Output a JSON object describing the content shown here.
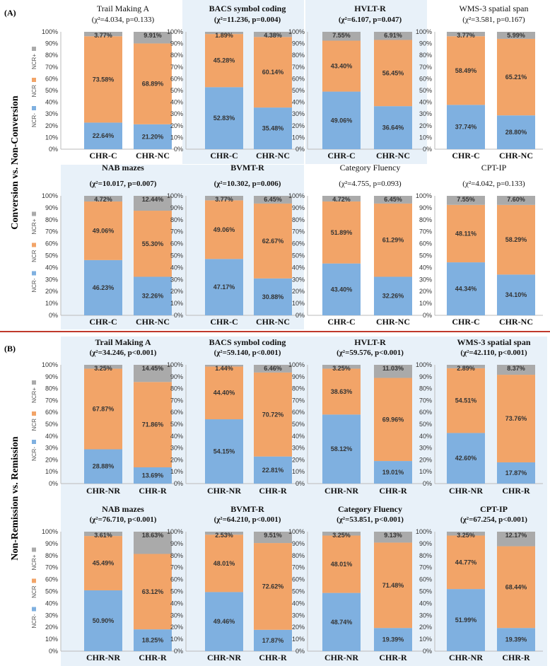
{
  "legend": {
    "ncr_minus": "NCR-",
    "ncr": "NCR",
    "ncr_plus": "NCR+",
    "colors": {
      "ncr_minus": "#7fb0e0",
      "ncr": "#f2a468",
      "ncr_plus": "#aaaaaa"
    }
  },
  "y_ticks": [
    "0%",
    "10%",
    "20%",
    "30%",
    "40%",
    "50%",
    "60%",
    "70%",
    "80%",
    "90%",
    "100%"
  ],
  "sections": [
    {
      "label": "(A)",
      "row_title": "Conversion vs. Non-Conversion"
    },
    {
      "label": "(B)",
      "row_title": "Non-Remission vs. Remission"
    }
  ],
  "chart_data": [
    {
      "type": "bar",
      "stacked": true,
      "title": "Trail Making A",
      "stat": "(χ²=4.034, p=0.133)",
      "categories": [
        "CHR-C",
        "CHR-NC"
      ],
      "series": [
        {
          "name": "NCR-",
          "values": [
            22.64,
            21.2
          ],
          "labels": [
            "22.64%",
            "21.20%"
          ]
        },
        {
          "name": "NCR",
          "values": [
            73.58,
            68.89
          ],
          "labels": [
            "73.58%",
            "68.89%"
          ]
        },
        {
          "name": "NCR+",
          "values": [
            3.77,
            9.91
          ],
          "labels": [
            "3.77%",
            "9.91%"
          ]
        }
      ],
      "ylim": [
        0,
        100
      ]
    },
    {
      "type": "bar",
      "stacked": true,
      "title": "BACS symbol coding",
      "stat": "(χ²=11.236, p=0.004)",
      "categories": [
        "CHR-C",
        "CHR-NC"
      ],
      "series": [
        {
          "name": "NCR-",
          "values": [
            52.83,
            35.48
          ],
          "labels": [
            "52.83%",
            "35.48%"
          ]
        },
        {
          "name": "NCR",
          "values": [
            45.28,
            60.14
          ],
          "labels": [
            "45.28%",
            "60.14%"
          ]
        },
        {
          "name": "NCR+",
          "values": [
            1.89,
            4.38
          ],
          "labels": [
            "1.89%",
            "4.38%"
          ]
        }
      ],
      "ylim": [
        0,
        100
      ]
    },
    {
      "type": "bar",
      "stacked": true,
      "title": "HVLT-R",
      "stat": "(χ²=6.107, p=0.047)",
      "categories": [
        "CHR-C",
        "CHR-NC"
      ],
      "series": [
        {
          "name": "NCR-",
          "values": [
            49.06,
            36.64
          ],
          "labels": [
            "49.06%",
            "36.64%"
          ]
        },
        {
          "name": "NCR",
          "values": [
            43.4,
            56.45
          ],
          "labels": [
            "43.40%",
            "56.45%"
          ]
        },
        {
          "name": "NCR+",
          "values": [
            7.55,
            6.91
          ],
          "labels": [
            "7.55%",
            "6.91%"
          ]
        }
      ],
      "ylim": [
        0,
        100
      ]
    },
    {
      "type": "bar",
      "stacked": true,
      "title": "WMS-3 spatial span",
      "stat": "(χ²=3.581, p=0.167)",
      "categories": [
        "CHR-C",
        "CHR-NC"
      ],
      "series": [
        {
          "name": "NCR-",
          "values": [
            37.74,
            28.8
          ],
          "labels": [
            "37.74%",
            "28.80%"
          ]
        },
        {
          "name": "NCR",
          "values": [
            58.49,
            65.21
          ],
          "labels": [
            "58.49%",
            "65.21%"
          ]
        },
        {
          "name": "NCR+",
          "values": [
            3.77,
            5.99
          ],
          "labels": [
            "3.77%",
            "5.99%"
          ]
        }
      ],
      "ylim": [
        0,
        100
      ]
    },
    {
      "type": "bar",
      "stacked": true,
      "title": "NAB mazes",
      "stat": "(χ²=10.017, p=0.007)",
      "categories": [
        "CHR-C",
        "CHR-NC"
      ],
      "series": [
        {
          "name": "NCR-",
          "values": [
            46.23,
            32.26
          ],
          "labels": [
            "46.23%",
            "32.26%"
          ]
        },
        {
          "name": "NCR",
          "values": [
            49.06,
            55.3
          ],
          "labels": [
            "49.06%",
            "55.30%"
          ]
        },
        {
          "name": "NCR+",
          "values": [
            4.72,
            12.44
          ],
          "labels": [
            "4.72%",
            "12.44%"
          ]
        }
      ],
      "ylim": [
        0,
        100
      ]
    },
    {
      "type": "bar",
      "stacked": true,
      "title": "BVMT-R",
      "stat": "(χ²=10.302, p=0.006)",
      "categories": [
        "CHR-C",
        "CHR-NC"
      ],
      "series": [
        {
          "name": "NCR-",
          "values": [
            47.17,
            30.88
          ],
          "labels": [
            "47.17%",
            "30.88%"
          ]
        },
        {
          "name": "NCR",
          "values": [
            49.06,
            62.67
          ],
          "labels": [
            "49.06%",
            "62.67%"
          ]
        },
        {
          "name": "NCR+",
          "values": [
            3.77,
            6.45
          ],
          "labels": [
            "3.77%",
            "6.45%"
          ]
        }
      ],
      "ylim": [
        0,
        100
      ]
    },
    {
      "type": "bar",
      "stacked": true,
      "title": "Category Fluency",
      "stat": "(χ²=4.755, p=0.093)",
      "categories": [
        "CHR-C",
        "CHR-NC"
      ],
      "series": [
        {
          "name": "NCR-",
          "values": [
            43.4,
            32.26
          ],
          "labels": [
            "43.40%",
            "32.26%"
          ]
        },
        {
          "name": "NCR",
          "values": [
            51.89,
            61.29
          ],
          "labels": [
            "51.89%",
            "61.29%"
          ]
        },
        {
          "name": "NCR+",
          "values": [
            4.72,
            6.45
          ],
          "labels": [
            "4.72%",
            "6.45%"
          ]
        }
      ],
      "ylim": [
        0,
        100
      ]
    },
    {
      "type": "bar",
      "stacked": true,
      "title": "CPT-IP",
      "stat": "(χ²=4.042, p=0.133)",
      "categories": [
        "CHR-C",
        "CHR-NC"
      ],
      "series": [
        {
          "name": "NCR-",
          "values": [
            44.34,
            34.1
          ],
          "labels": [
            "44.34%",
            "34.10%"
          ]
        },
        {
          "name": "NCR",
          "values": [
            48.11,
            58.29
          ],
          "labels": [
            "48.11%",
            "58.29%"
          ]
        },
        {
          "name": "NCR+",
          "values": [
            7.55,
            7.6
          ],
          "labels": [
            "7.55%",
            "7.60%"
          ]
        }
      ],
      "ylim": [
        0,
        100
      ]
    },
    {
      "type": "bar",
      "stacked": true,
      "title": "Trail Making A",
      "stat": "(χ²=34.246, p<0.001)",
      "categories": [
        "CHR-NR",
        "CHR-R"
      ],
      "series": [
        {
          "name": "NCR-",
          "values": [
            28.88,
            13.69
          ],
          "labels": [
            "28.88%",
            "13.69%"
          ]
        },
        {
          "name": "NCR",
          "values": [
            67.87,
            71.86
          ],
          "labels": [
            "67.87%",
            "71.86%"
          ]
        },
        {
          "name": "NCR+",
          "values": [
            3.25,
            14.45
          ],
          "labels": [
            "3.25%",
            "14.45%"
          ]
        }
      ],
      "ylim": [
        0,
        100
      ]
    },
    {
      "type": "bar",
      "stacked": true,
      "title": "BACS symbol coding",
      "stat": "(χ²=59.140, p<0.001)",
      "categories": [
        "CHR-NR",
        "CHR-R"
      ],
      "series": [
        {
          "name": "NCR-",
          "values": [
            54.15,
            22.81
          ],
          "labels": [
            "54.15%",
            "22.81%"
          ]
        },
        {
          "name": "NCR",
          "values": [
            44.4,
            70.72
          ],
          "labels": [
            "44.40%",
            "70.72%"
          ]
        },
        {
          "name": "NCR+",
          "values": [
            1.44,
            6.46
          ],
          "labels": [
            "1.44%",
            "6.46%"
          ]
        }
      ],
      "ylim": [
        0,
        100
      ]
    },
    {
      "type": "bar",
      "stacked": true,
      "title": "HVLT-R",
      "stat": "(χ²=59.576, p<0.001)",
      "categories": [
        "CHR-NR",
        "CHR-R"
      ],
      "series": [
        {
          "name": "NCR-",
          "values": [
            58.12,
            19.01
          ],
          "labels": [
            "58.12%",
            "19.01%"
          ]
        },
        {
          "name": "NCR",
          "values": [
            38.63,
            69.96
          ],
          "labels": [
            "38.63%",
            "69.96%"
          ]
        },
        {
          "name": "NCR+",
          "values": [
            3.25,
            11.03
          ],
          "labels": [
            "3.25%",
            "11.03%"
          ]
        }
      ],
      "ylim": [
        0,
        100
      ]
    },
    {
      "type": "bar",
      "stacked": true,
      "title": "WMS-3 spatial span",
      "stat": "(χ²=42.110, p<0.001)",
      "categories": [
        "CHR-NR",
        "CHR-R"
      ],
      "series": [
        {
          "name": "NCR-",
          "values": [
            42.6,
            17.87
          ],
          "labels": [
            "42.60%",
            "17.87%"
          ]
        },
        {
          "name": "NCR",
          "values": [
            54.51,
            73.76
          ],
          "labels": [
            "54.51%",
            "73.76%"
          ]
        },
        {
          "name": "NCR+",
          "values": [
            2.89,
            8.37
          ],
          "labels": [
            "2.89%",
            "8.37%"
          ]
        }
      ],
      "ylim": [
        0,
        100
      ]
    },
    {
      "type": "bar",
      "stacked": true,
      "title": "NAB mazes",
      "stat": "(χ²=76.710, p<0.001)",
      "categories": [
        "CHR-NR",
        "CHR-R"
      ],
      "series": [
        {
          "name": "NCR-",
          "values": [
            50.9,
            18.25
          ],
          "labels": [
            "50.90%",
            "18.25%"
          ]
        },
        {
          "name": "NCR",
          "values": [
            45.49,
            63.12
          ],
          "labels": [
            "45.49%",
            "63.12%"
          ]
        },
        {
          "name": "NCR+",
          "values": [
            3.61,
            18.63
          ],
          "labels": [
            "3.61%",
            "18.63%"
          ]
        }
      ],
      "ylim": [
        0,
        100
      ]
    },
    {
      "type": "bar",
      "stacked": true,
      "title": "BVMT-R",
      "stat": "(χ²=64.210, p<0.001)",
      "categories": [
        "CHR-NR",
        "CHR-R"
      ],
      "series": [
        {
          "name": "NCR-",
          "values": [
            49.46,
            17.87
          ],
          "labels": [
            "49.46%",
            "17.87%"
          ]
        },
        {
          "name": "NCR",
          "values": [
            48.01,
            72.62
          ],
          "labels": [
            "48.01%",
            "72.62%"
          ]
        },
        {
          "name": "NCR+",
          "values": [
            2.53,
            9.51
          ],
          "labels": [
            "2.53%",
            "9.51%"
          ]
        }
      ],
      "ylim": [
        0,
        100
      ]
    },
    {
      "type": "bar",
      "stacked": true,
      "title": "Category Fluency",
      "stat": "(χ²=53.851, p<0.001)",
      "categories": [
        "CHR-NR",
        "CHR-R"
      ],
      "series": [
        {
          "name": "NCR-",
          "values": [
            48.74,
            19.39
          ],
          "labels": [
            "48.74%",
            "19.39%"
          ]
        },
        {
          "name": "NCR",
          "values": [
            48.01,
            71.48
          ],
          "labels": [
            "48.01%",
            "71.48%"
          ]
        },
        {
          "name": "NCR+",
          "values": [
            3.25,
            9.13
          ],
          "labels": [
            "3.25%",
            "9.13%"
          ]
        }
      ],
      "ylim": [
        0,
        100
      ]
    },
    {
      "type": "bar",
      "stacked": true,
      "title": "CPT-IP",
      "stat": "(χ²=67.254, p<0.001)",
      "categories": [
        "CHR-NR",
        "CHR-R"
      ],
      "series": [
        {
          "name": "NCR-",
          "values": [
            51.99,
            19.39
          ],
          "labels": [
            "51.99%",
            "19.39%"
          ]
        },
        {
          "name": "NCR",
          "values": [
            44.77,
            68.44
          ],
          "labels": [
            "44.77%",
            "68.44%"
          ]
        },
        {
          "name": "NCR+",
          "values": [
            3.25,
            12.17
          ],
          "labels": [
            "3.25%",
            "12.17%"
          ]
        }
      ],
      "ylim": [
        0,
        100
      ]
    }
  ]
}
